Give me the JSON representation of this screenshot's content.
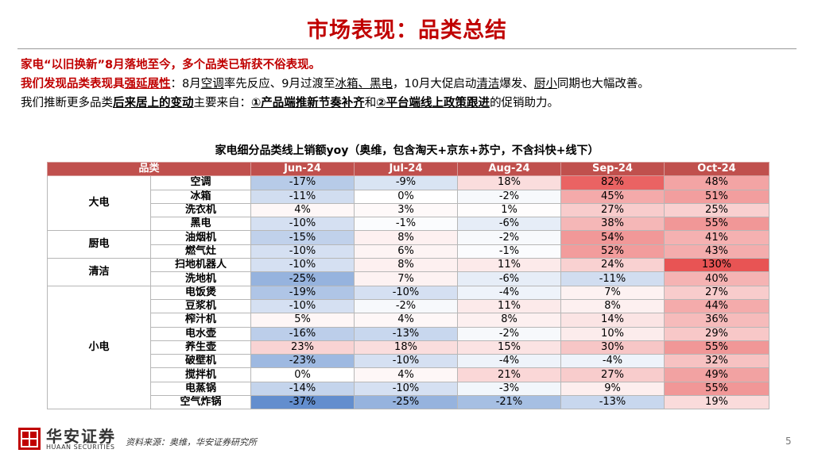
{
  "title": "市场表现：品类总结",
  "line1": "家电“以旧换新”8月落地至今，多个品类已斩获不俗表现。",
  "line2": {
    "a": "我们发现品类表现具",
    "b": "强延展性",
    "c": "：8月",
    "d": "空调",
    "e": "率先反应、9月过渡至",
    "f": "冰箱、黑电",
    "g": "，10月大促启动",
    "h": "清洁",
    "i": "爆发、",
    "j": "厨小",
    "k": "同期也大幅改善。"
  },
  "line3": {
    "a": "我们推断更多品类",
    "b": "后来居上的变动",
    "c": "主要来自：",
    "d": "①产品端推新节奏补齐",
    "e": "和",
    "f": "②平台端线上政策跟进",
    "g": "的促销助力。"
  },
  "table": {
    "title": "家电细分品类线上销额yoy（奥维，包含淘天+京东+苏宁，不含抖快+线下）",
    "category_header": "品类",
    "months": [
      "Jun-24",
      "Jul-24",
      "Aug-24",
      "Sep-24",
      "Oct-24"
    ],
    "groups": [
      {
        "name": "大电",
        "rows": [
          {
            "name": "空调",
            "values": [
              "-17%",
              "-9%",
              "18%",
              "82%",
              "48%"
            ]
          },
          {
            "name": "冰箱",
            "values": [
              "-11%",
              "0%",
              "-2%",
              "45%",
              "51%"
            ]
          },
          {
            "name": "洗衣机",
            "values": [
              "4%",
              "3%",
              "1%",
              "27%",
              "25%"
            ]
          },
          {
            "name": "黑电",
            "values": [
              "-10%",
              "-1%",
              "-6%",
              "38%",
              "55%"
            ]
          }
        ]
      },
      {
        "name": "厨电",
        "rows": [
          {
            "name": "油烟机",
            "values": [
              "-15%",
              "8%",
              "-2%",
              "54%",
              "41%"
            ]
          },
          {
            "name": "燃气灶",
            "values": [
              "-10%",
              "6%",
              "-1%",
              "52%",
              "43%"
            ]
          }
        ]
      },
      {
        "name": "清洁",
        "rows": [
          {
            "name": "扫地机器人",
            "values": [
              "-10%",
              "8%",
              "11%",
              "24%",
              "130%"
            ]
          },
          {
            "name": "洗地机",
            "values": [
              "-25%",
              "7%",
              "-6%",
              "-11%",
              "40%"
            ]
          }
        ]
      },
      {
        "name": "小电",
        "rows": [
          {
            "name": "电饭煲",
            "values": [
              "-19%",
              "-10%",
              "-4%",
              "7%",
              "27%"
            ]
          },
          {
            "name": "豆浆机",
            "values": [
              "-10%",
              "-2%",
              "11%",
              "8%",
              "44%"
            ]
          },
          {
            "name": "榨汁机",
            "values": [
              "5%",
              "4%",
              "8%",
              "14%",
              "36%"
            ]
          },
          {
            "name": "电水壶",
            "values": [
              "-16%",
              "-13%",
              "-2%",
              "10%",
              "29%"
            ]
          },
          {
            "name": "养生壶",
            "values": [
              "23%",
              "18%",
              "15%",
              "30%",
              "55%"
            ]
          },
          {
            "name": "破壁机",
            "values": [
              "-23%",
              "-10%",
              "-4%",
              "-4%",
              "32%"
            ]
          },
          {
            "name": "搅拌机",
            "values": [
              "0%",
              "4%",
              "21%",
              "27%",
              "49%"
            ]
          },
          {
            "name": "电蒸锅",
            "values": [
              "-14%",
              "-10%",
              "-3%",
              "9%",
              "55%"
            ]
          },
          {
            "name": "空气炸锅",
            "values": [
              "-37%",
              "-25%",
              "-21%",
              "-13%",
              "19%"
            ]
          }
        ]
      }
    ]
  },
  "colors": {
    "accent": "#c00000",
    "header": "#c0504d",
    "neg": "#4f81bd",
    "pos": "#e84c4c"
  },
  "logo_cn": "华安证券",
  "logo_en": "HUAAN SECURITIES",
  "source": "资料来源：奥维，华安证券研究所",
  "page_number": "5"
}
